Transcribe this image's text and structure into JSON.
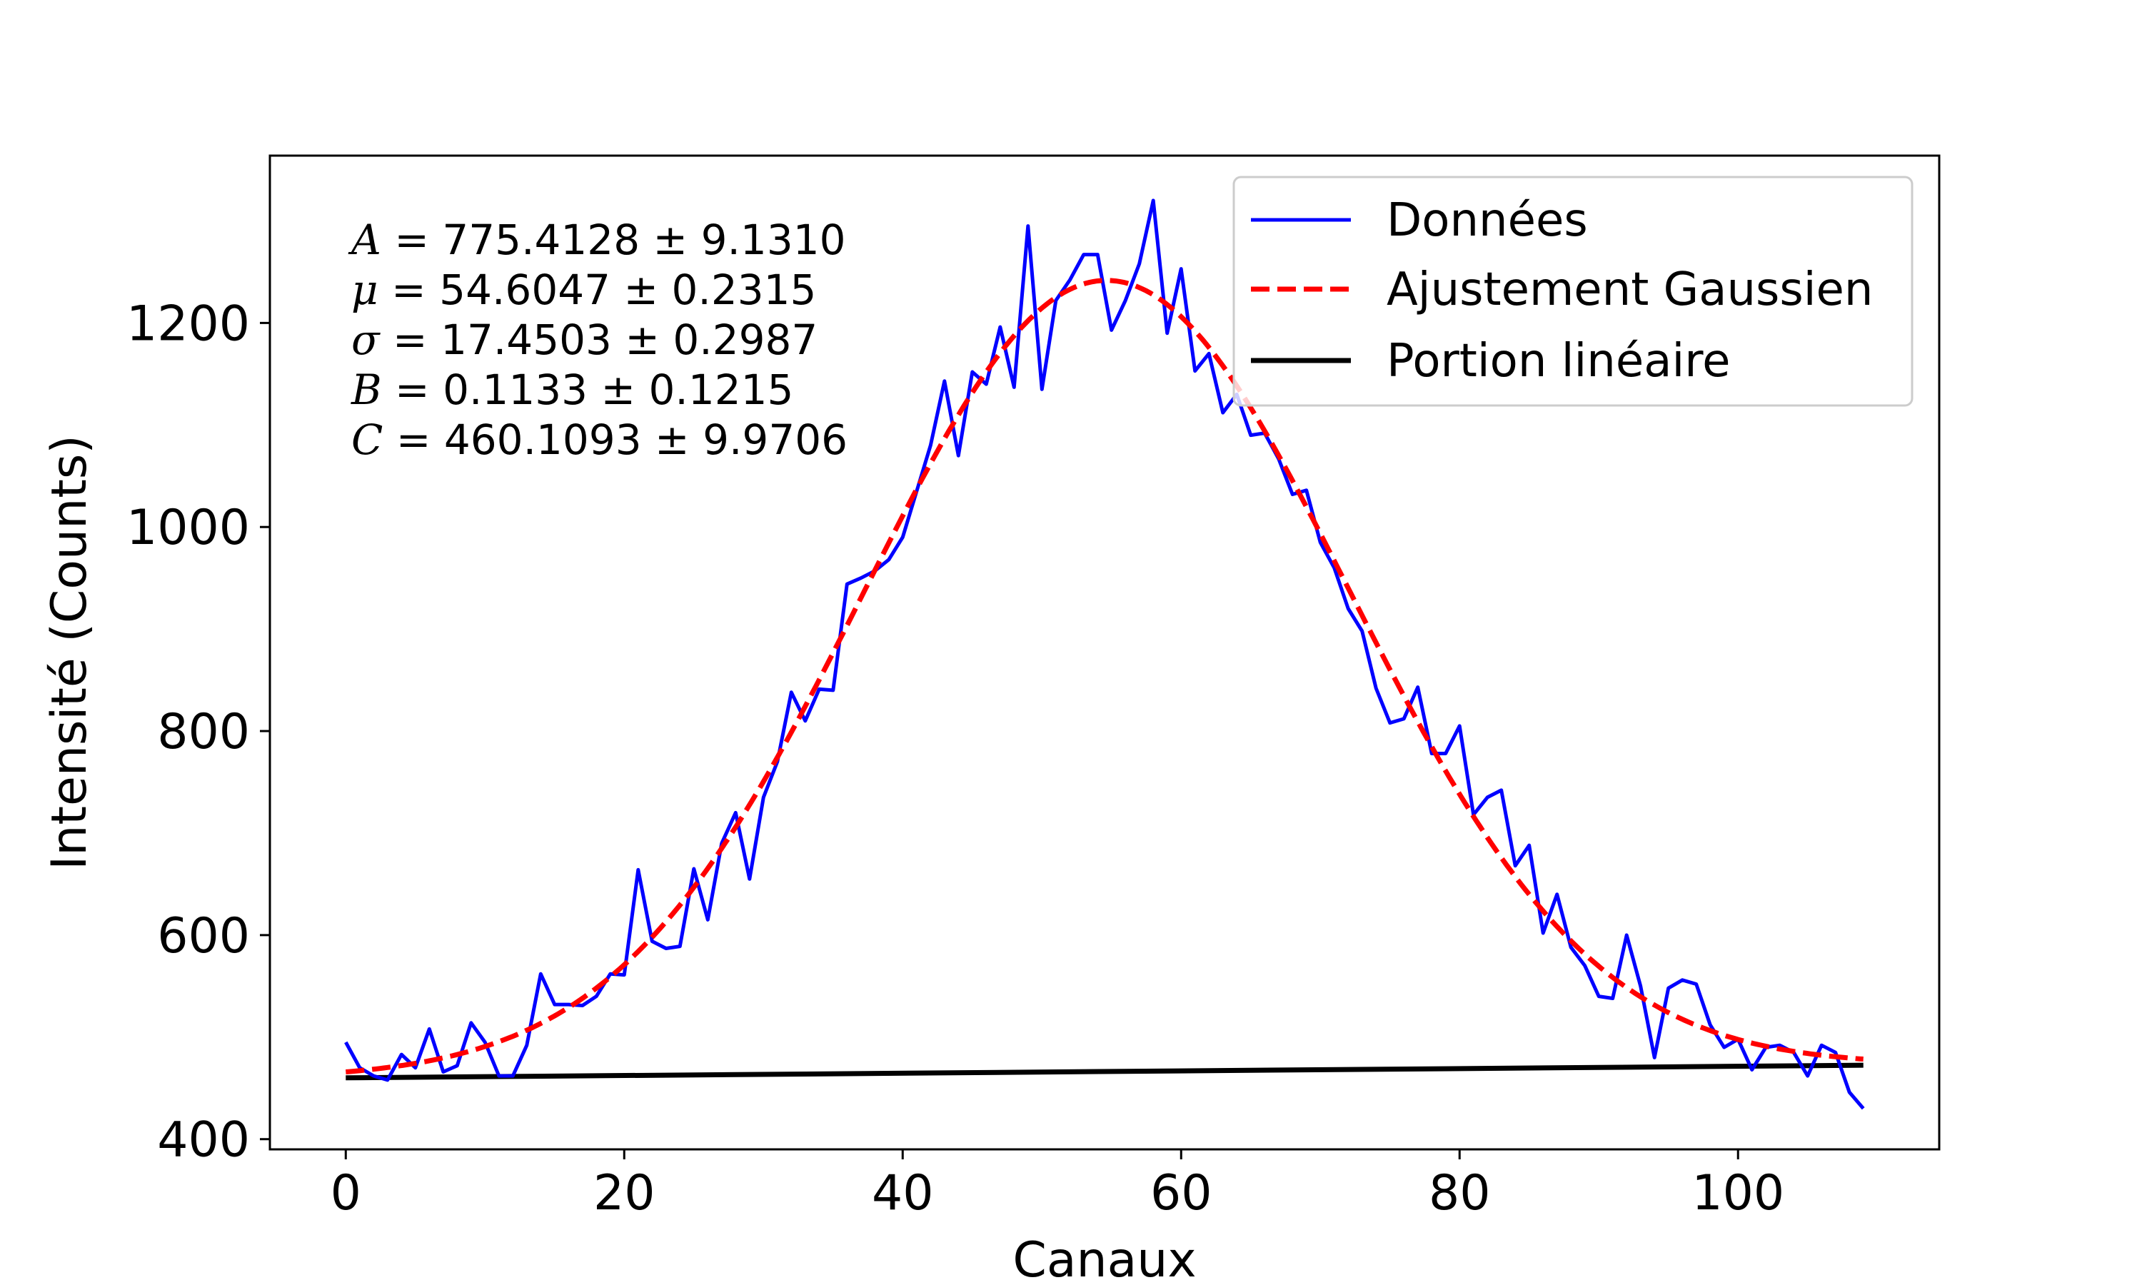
{
  "chart_data": {
    "type": "line",
    "xlabel": "Canaux",
    "ylabel": "Intensité (Counts)",
    "xlim": [
      -5.45,
      114.45
    ],
    "ylim": [
      390,
      1364
    ],
    "xticks": [
      0,
      20,
      40,
      60,
      80,
      100
    ],
    "yticks": [
      400,
      600,
      800,
      1000,
      1200
    ],
    "grid": false,
    "legend_position": "top-right",
    "annotation_lines": [
      {
        "var": "A",
        "text": " = 775.4128 ± 9.1310"
      },
      {
        "var": "μ",
        "text": " = 54.6047 ± 0.2315"
      },
      {
        "var": "σ",
        "text": " = 17.4503 ± 0.2987"
      },
      {
        "var": "B",
        "text": " = 0.1133 ± 0.1215"
      },
      {
        "var": "C",
        "text": " = 460.1093 ± 9.9706"
      }
    ],
    "fit_params": {
      "A": 775.4128,
      "mu": 54.6047,
      "sigma": 17.4503,
      "B": 0.1133,
      "C": 460.1093
    },
    "series": [
      {
        "name": "Données",
        "color": "#0000ff",
        "style": "solid",
        "x": [
          0,
          1,
          2,
          3,
          4,
          5,
          6,
          7,
          8,
          9,
          10,
          11,
          12,
          13,
          14,
          15,
          16,
          17,
          18,
          19,
          20,
          21,
          22,
          23,
          24,
          25,
          26,
          27,
          28,
          29,
          30,
          31,
          32,
          33,
          34,
          35,
          36,
          37,
          38,
          39,
          40,
          41,
          42,
          43,
          44,
          45,
          46,
          47,
          48,
          49,
          50,
          51,
          52,
          53,
          54,
          55,
          56,
          57,
          58,
          59,
          60,
          61,
          62,
          63,
          64,
          65,
          66,
          67,
          68,
          69,
          70,
          71,
          72,
          73,
          74,
          75,
          76,
          77,
          78,
          79,
          80,
          81,
          82,
          83,
          84,
          85,
          86,
          87,
          88,
          89,
          90,
          91,
          92,
          93,
          94,
          95,
          96,
          97,
          98,
          99,
          100,
          101,
          102,
          103,
          104,
          105,
          106,
          107,
          108,
          109
        ],
        "y": [
          495,
          470,
          462,
          458,
          483,
          470,
          508,
          466,
          472,
          514,
          495,
          462,
          462,
          492,
          562,
          532,
          532,
          531,
          540,
          562,
          561,
          664,
          594,
          587,
          589,
          665,
          615,
          690,
          720,
          655,
          735,
          770,
          838,
          810,
          841,
          840,
          944,
          950,
          957,
          968,
          990,
          1035,
          1080,
          1143,
          1070,
          1152,
          1140,
          1196,
          1137,
          1295,
          1135,
          1222,
          1242,
          1267,
          1267,
          1193,
          1222,
          1258,
          1320,
          1190,
          1253,
          1153,
          1170,
          1112,
          1130,
          1090,
          1092,
          1067,
          1032,
          1036,
          985,
          960,
          920,
          898,
          842,
          808,
          812,
          843,
          778,
          778,
          805,
          718,
          735,
          742,
          668,
          688,
          602,
          640,
          588,
          570,
          540,
          538,
          600,
          550,
          480,
          548,
          556,
          552,
          512,
          490,
          498,
          468,
          490,
          492,
          485,
          462,
          492,
          485,
          446,
          430
        ]
      },
      {
        "name": "Ajustement Gaussien",
        "color": "#ff0000",
        "style": "dashed"
      },
      {
        "name": "Portion linéaire",
        "color": "#000000",
        "style": "solid"
      }
    ]
  }
}
